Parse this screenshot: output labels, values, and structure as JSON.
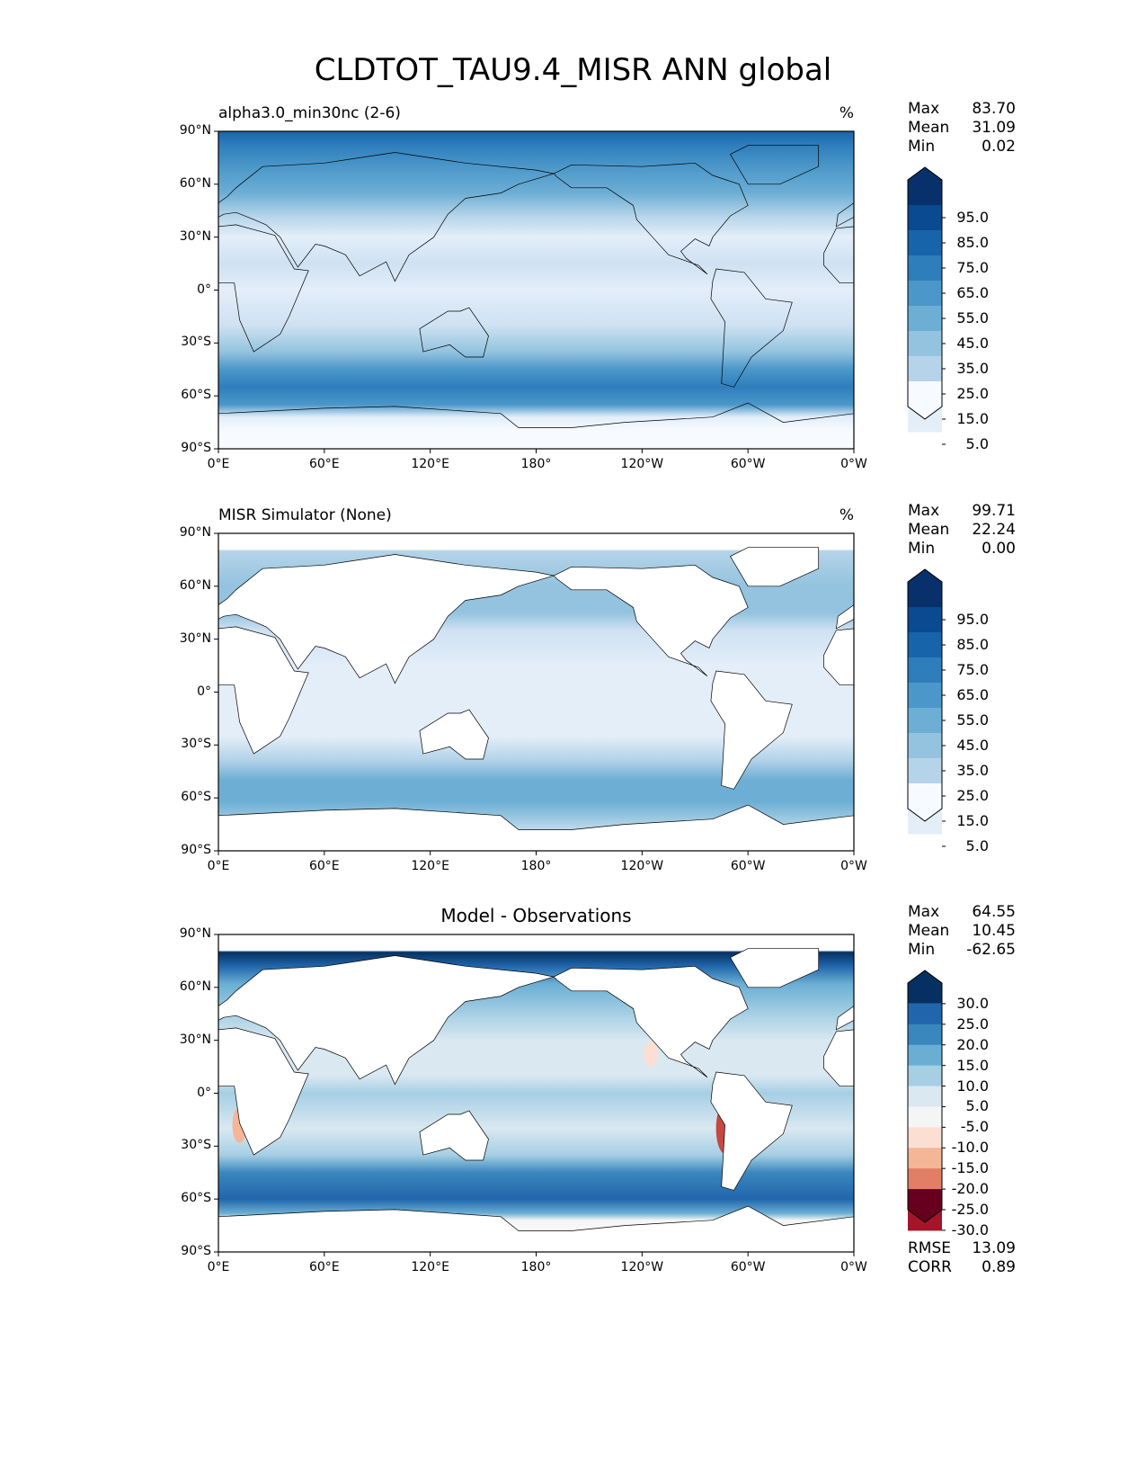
{
  "title": "CLDTOT_TAU9.4_MISR ANN global",
  "panels": [
    {
      "left_title": "alpha3.0_min30nc (2-6)",
      "right_title": "%",
      "center_title": "",
      "stats": {
        "max_label": "Max",
        "max": "83.70",
        "mean_label": "Mean",
        "mean": "31.09",
        "min_label": "Min",
        "min": "0.02"
      },
      "colorbar": {
        "colormap": "Blues",
        "labels": [
          "95.0",
          "85.0",
          "75.0",
          "65.0",
          "55.0",
          "45.0",
          "35.0",
          "25.0",
          "15.0",
          "5.0"
        ],
        "colors": [
          "#08306b",
          "#0a4a90",
          "#1864aa",
          "#2f7ebc",
          "#4b97c9",
          "#6daed5",
          "#93c3df",
          "#b5d4e9",
          "#cfe1f2",
          "#e3eef9",
          "#f7fbff"
        ]
      }
    },
    {
      "left_title": "MISR Simulator (None)",
      "right_title": "%",
      "center_title": "",
      "stats": {
        "max_label": "Max",
        "max": "99.71",
        "mean_label": "Mean",
        "mean": "22.24",
        "min_label": "Min",
        "min": "0.00"
      },
      "colorbar": {
        "colormap": "Blues",
        "labels": [
          "95.0",
          "85.0",
          "75.0",
          "65.0",
          "55.0",
          "45.0",
          "35.0",
          "25.0",
          "15.0",
          "5.0"
        ],
        "colors": [
          "#08306b",
          "#0a4a90",
          "#1864aa",
          "#2f7ebc",
          "#4b97c9",
          "#6daed5",
          "#93c3df",
          "#b5d4e9",
          "#cfe1f2",
          "#e3eef9",
          "#f7fbff"
        ]
      }
    },
    {
      "left_title": "",
      "right_title": "",
      "center_title": "Model - Observations",
      "stats": {
        "max_label": "Max",
        "max": "64.55",
        "mean_label": "Mean",
        "mean": "10.45",
        "min_label": "Min",
        "min": "-62.65",
        "rmse_label": "RMSE",
        "rmse": "13.09",
        "corr_label": "CORR",
        "corr": "0.89"
      },
      "colorbar": {
        "colormap": "RdBu",
        "labels": [
          "30.0",
          "25.0",
          "20.0",
          "15.0",
          "10.0",
          "5.0",
          "-5.0",
          "-10.0",
          "-15.0",
          "-20.0",
          "-25.0",
          "-30.0"
        ],
        "colors": [
          "#053061",
          "#2166ac",
          "#3a87be",
          "#6aaed3",
          "#a6cfe4",
          "#d9e8f1",
          "#f5f5f5",
          "#fbdfd2",
          "#f5b597",
          "#e17f66",
          "#c64840",
          "#a51428",
          "#67001f"
        ]
      }
    }
  ],
  "axes": {
    "lat_ticks": [
      "90°N",
      "60°N",
      "30°N",
      "0°",
      "30°S",
      "60°S",
      "90°S"
    ],
    "lon_ticks": [
      "0°E",
      "60°E",
      "120°E",
      "180°",
      "120°W",
      "60°W",
      "0°W"
    ]
  }
}
